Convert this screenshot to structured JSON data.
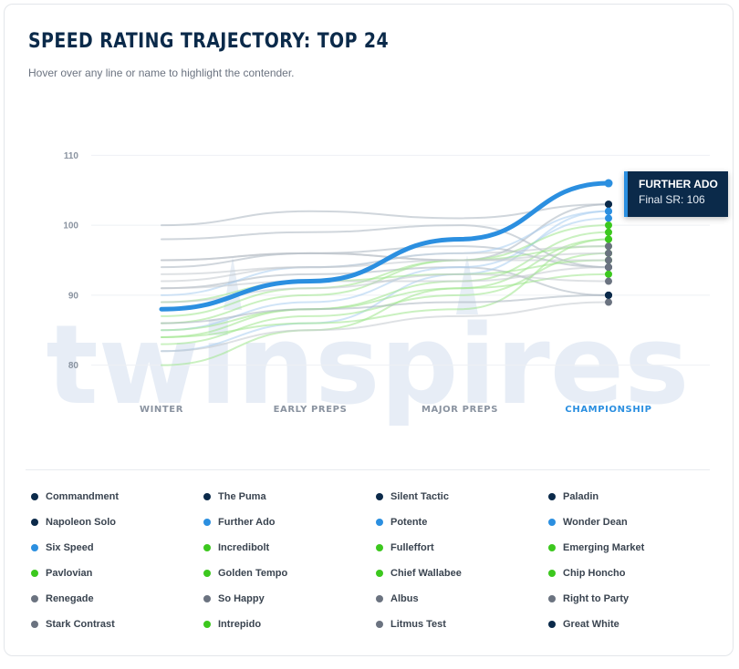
{
  "header": {
    "title": "SPEED RATING TRAJECTORY: TOP 24",
    "subtitle": "Hover over any line or name to highlight the contender."
  },
  "watermark": "twinspires",
  "tooltip": {
    "name": "FURTHER ADO",
    "value": "Final SR: 106"
  },
  "colors": {
    "navy": "#0b2a4a",
    "blue": "#2b8fe0",
    "green": "#3cc81e",
    "gray": "#6b7380",
    "highlight": "#2b8fe0"
  },
  "chart_data": {
    "type": "line",
    "categories": [
      "WINTER",
      "EARLY PREPS",
      "MAJOR PREPS",
      "CHAMPIONSHIP"
    ],
    "yticks": [
      80,
      90,
      100,
      110
    ],
    "ylim": [
      78,
      112
    ],
    "highlighted": "Further Ado",
    "active_category": "CHAMPIONSHIP",
    "series": [
      {
        "name": "Commandment",
        "group": "navy",
        "values": [
          94,
          96,
          95,
          103
        ]
      },
      {
        "name": "The Puma",
        "group": "navy",
        "values": [
          95,
          96,
          97,
          94
        ]
      },
      {
        "name": "Silent Tactic",
        "group": "navy",
        "values": [
          91,
          93,
          94,
          90
        ]
      },
      {
        "name": "Paladin",
        "group": "navy",
        "values": [
          100,
          102,
          101,
          103
        ]
      },
      {
        "name": "Napoleon Solo",
        "group": "navy",
        "values": [
          98,
          99,
          100,
          94
        ]
      },
      {
        "name": "Further Ado",
        "group": "blue",
        "values": [
          88,
          92,
          98,
          106
        ]
      },
      {
        "name": "Potente",
        "group": "blue",
        "values": [
          82,
          86,
          93,
          102
        ]
      },
      {
        "name": "Wonder Dean",
        "group": "blue",
        "values": [
          85,
          89,
          94,
          101
        ]
      },
      {
        "name": "Six Speed",
        "group": "blue",
        "values": [
          90,
          94,
          96,
          102
        ]
      },
      {
        "name": "Incredibolt",
        "group": "green",
        "values": [
          86,
          90,
          95,
          100
        ]
      },
      {
        "name": "Fulleffort",
        "group": "green",
        "values": [
          84,
          88,
          92,
          99
        ]
      },
      {
        "name": "Emerging Market",
        "group": "green",
        "values": [
          80,
          85,
          91,
          98
        ]
      },
      {
        "name": "Pavlovian",
        "group": "green",
        "values": [
          87,
          91,
          95,
          97
        ]
      },
      {
        "name": "Golden Tempo",
        "group": "green",
        "values": [
          83,
          87,
          90,
          96
        ]
      },
      {
        "name": "Chief Wallabee",
        "group": "green",
        "values": [
          89,
          92,
          93,
          95
        ]
      },
      {
        "name": "Chip Honcho",
        "group": "green",
        "values": [
          85,
          88,
          91,
          93
        ]
      },
      {
        "name": "Renegade",
        "group": "gray",
        "values": [
          93,
          94,
          96,
          97
        ]
      },
      {
        "name": "So Happy",
        "group": "gray",
        "values": [
          92,
          94,
          95,
          95
        ]
      },
      {
        "name": "Albus",
        "group": "gray",
        "values": [
          89,
          91,
          93,
          92
        ]
      },
      {
        "name": "Right to Party",
        "group": "gray",
        "values": [
          95,
          96,
          95,
          96
        ]
      },
      {
        "name": "Stark Contrast",
        "group": "gray",
        "values": [
          82,
          85,
          87,
          89
        ]
      },
      {
        "name": "Intrepido",
        "group": "green",
        "values": [
          84,
          86,
          88,
          98
        ]
      },
      {
        "name": "Litmus Test",
        "group": "gray",
        "values": [
          91,
          92,
          92,
          94
        ]
      },
      {
        "name": "Great White",
        "group": "navy",
        "values": [
          86,
          88,
          89,
          90
        ]
      }
    ]
  }
}
